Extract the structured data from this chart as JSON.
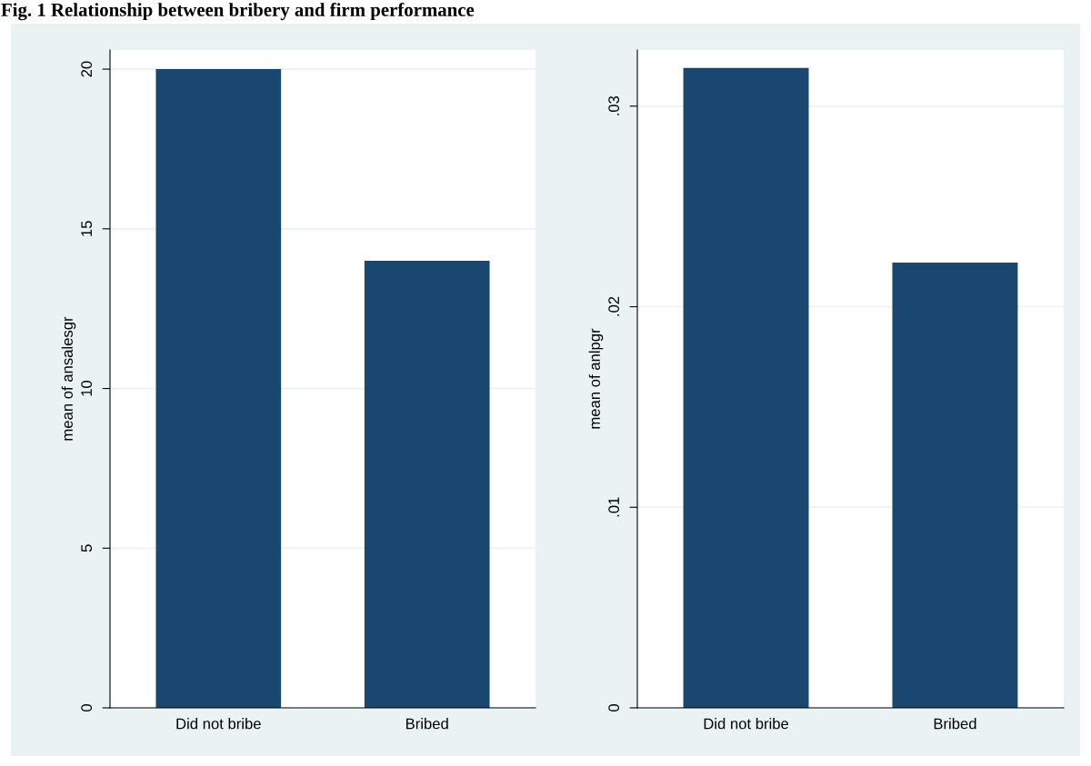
{
  "chart_data": [
    {
      "type": "bar",
      "title": "Fig. 1 Relationship between bribery and firm performance",
      "ylabel": "mean of ansalesgr",
      "categories": [
        "Did not bribe",
        "Bribed"
      ],
      "series": [
        {
          "color": "#1a476f",
          "values": [
            20.0,
            14.0
          ]
        }
      ],
      "ylim": [
        0,
        20.6
      ],
      "yticks": [
        0,
        5,
        10,
        15,
        20
      ],
      "grid": "y",
      "legend": false
    },
    {
      "type": "bar",
      "ylabel": "mean of anlpgr",
      "categories": [
        "Did not bribe",
        "Bribed"
      ],
      "series": [
        {
          "color": "#1a476f",
          "values": [
            0.0319,
            0.0222
          ]
        }
      ],
      "ylim": [
        0,
        0.0328
      ],
      "yticks": [
        0,
        {
          "value": 0.01,
          "label": ".01"
        },
        {
          "value": 0.02,
          "label": ".02"
        },
        {
          "value": 0.03,
          "label": ".03"
        }
      ],
      "grid": "y",
      "legend": false
    }
  ]
}
